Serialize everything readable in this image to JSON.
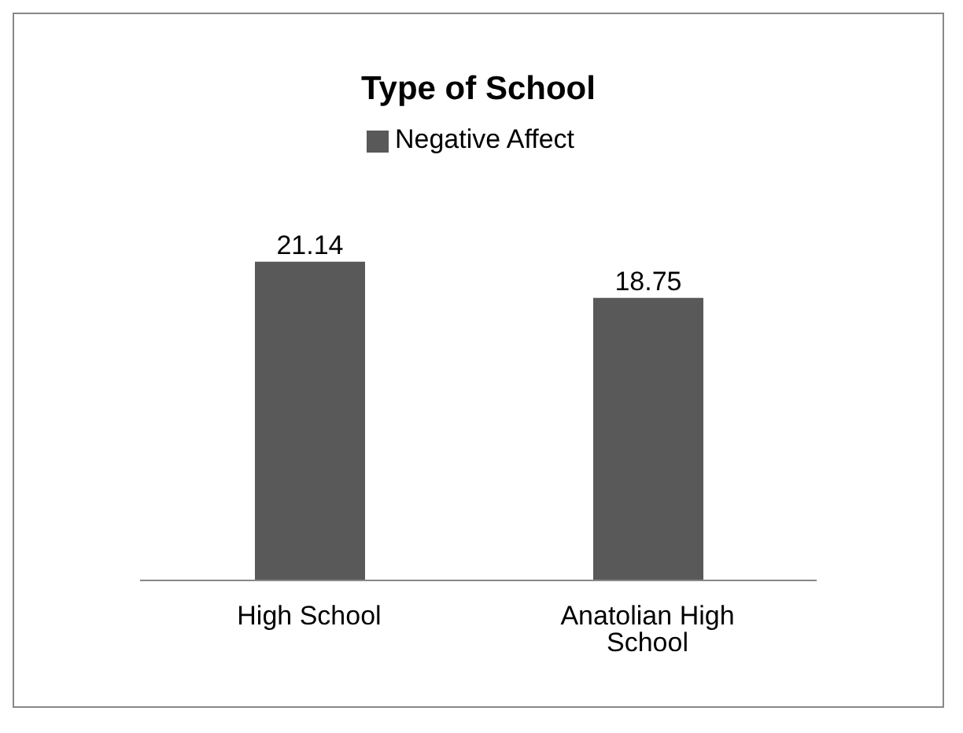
{
  "chart_data": {
    "type": "bar",
    "title": "Type of School",
    "categories": [
      "High School",
      "Anatolian High School"
    ],
    "series": [
      {
        "name": "Negative Affect",
        "color": "#595959",
        "values": [
          21.14,
          18.75
        ]
      }
    ],
    "data_labels": true,
    "legend": "top",
    "grid": false
  }
}
